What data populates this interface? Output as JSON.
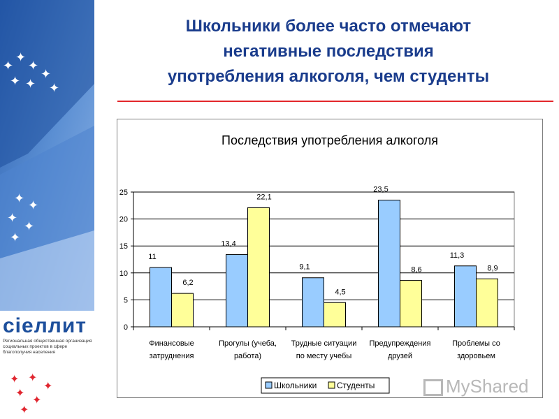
{
  "slide": {
    "title_lines": [
      "Школьники более часто отмечают",
      "негативные последствия",
      "употребления алкоголя, чем студенты"
    ]
  },
  "logo": {
    "word": "сiеллит",
    "subtitle_lines": [
      "Региональная общественная организация",
      "социальных проектов в сфере",
      "благополучия населения"
    ]
  },
  "watermark": "MyShared",
  "colors": {
    "title": "#1a3c8c",
    "rule": "#e3262b",
    "series_1": "#99ccff",
    "series_2": "#ffff99",
    "sidebar_dark": "#1d4f9c",
    "sidebar_light": "#6f9bd6"
  },
  "chart_data": {
    "type": "bar",
    "title": "Последствия употребления алкоголя",
    "categories": [
      [
        "Финансовые",
        "затруднения"
      ],
      [
        "Прогулы (учеба,",
        "работа)"
      ],
      [
        "Трудные ситуации",
        "по месту учебы"
      ],
      [
        "Предупреждения",
        "друзей"
      ],
      [
        "Проблемы со",
        "здоровьем"
      ]
    ],
    "series": [
      {
        "name": "Школьники",
        "values": [
          11,
          13.4,
          9.1,
          23.5,
          11.3
        ],
        "labels": [
          "11",
          "13,4",
          "9,1",
          "23,5",
          "11,3"
        ],
        "color": "#99ccff"
      },
      {
        "name": "Студенты",
        "values": [
          6.2,
          22.1,
          4.5,
          8.6,
          8.9
        ],
        "labels": [
          "6,2",
          "22,1",
          "4,5",
          "8,6",
          "8,9"
        ],
        "color": "#ffff99"
      }
    ],
    "ylim": [
      0,
      25
    ],
    "yticks": [
      0,
      5,
      10,
      15,
      20,
      25
    ],
    "grid": true,
    "legend": "bottom"
  }
}
